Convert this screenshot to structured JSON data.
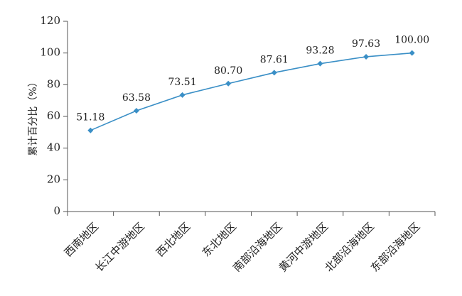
{
  "chart_data": {
    "type": "line",
    "title": "",
    "xlabel": "",
    "ylabel": "累计百分比（%）",
    "categories": [
      "西南地区",
      "长江中游地区",
      "西北地区",
      "东北地区",
      "南部沿海地区",
      "黄河中游地区",
      "北部沿海地区",
      "东部沿海地区"
    ],
    "series": [
      {
        "values": [
          51.18,
          63.58,
          73.51,
          80.7,
          87.61,
          93.28,
          97.63,
          100.0
        ]
      }
    ],
    "data_labels": [
      "51.18",
      "63.58",
      "73.51",
      "80.70",
      "87.61",
      "93.28",
      "97.63",
      "100.00"
    ],
    "ylim": [
      0,
      120
    ],
    "yticks": [
      0,
      20,
      40,
      60,
      80,
      100,
      120
    ],
    "grid": false,
    "legend": "none",
    "colors": {
      "line": "#3a8fc6",
      "marker": "#3a8fc6",
      "axis": "#555555",
      "text": "#222222"
    }
  }
}
